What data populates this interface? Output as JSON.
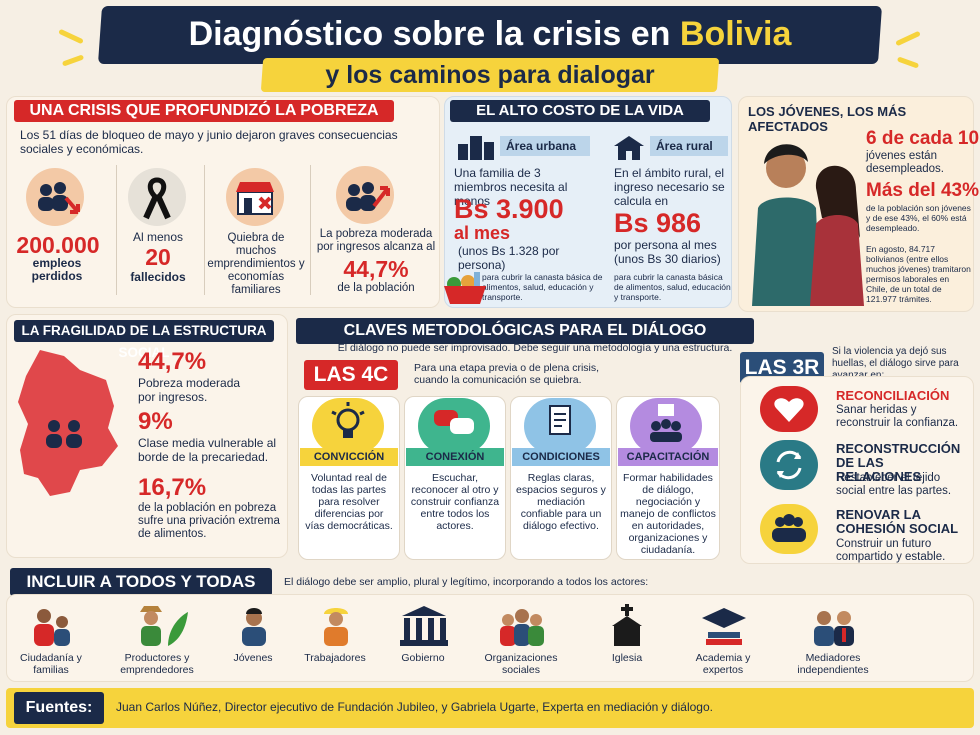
{
  "header": {
    "title_main": "Diagnóstico sobre la crisis en",
    "title_country": "Bolivia",
    "subtitle": "y los caminos para dialogar"
  },
  "crisis": {
    "title": "UNA CRISIS QUE PROFUNDIZÓ LA POBREZA",
    "intro": "Los 51 días de bloqueo de mayo y junio dejaron graves consecuencias sociales y económicas.",
    "stats": [
      {
        "value": "200.000",
        "label": "empleos perdidos"
      },
      {
        "prefix": "Al menos",
        "value": "20",
        "label": "fallecidos"
      },
      {
        "text": "Quiebra de muchos emprendimientos y economías familiares"
      },
      {
        "prefix": "La pobreza moderada por ingresos alcanza al",
        "value": "44,7%",
        "label": "de la población"
      }
    ]
  },
  "costo": {
    "title": "EL ALTO COSTO DE LA VIDA",
    "urbana": {
      "tag": "Área urbana",
      "text": "Una familia de 3 miembros necesita al menos",
      "amount": "Bs 3.900",
      "period": "al mes",
      "note": "(unos Bs 1.328 por persona)",
      "footnote": "para cubrir la canasta básica de alimentos, salud, educación y transporte."
    },
    "rural": {
      "tag": "Área rural",
      "text": "En el ámbito rural, el ingreso necesario se calcula en",
      "amount": "Bs 986",
      "period": "por persona al mes",
      "note": "(unos Bs 30 diarios)",
      "footnote": "para cubrir la canasta básica de alimentos, salud, educación y transporte."
    }
  },
  "jovenes": {
    "title": "LOS JÓVENES, LOS MÁS AFECTADOS",
    "stat1_value": "6 de cada 10",
    "stat1_text": "jóvenes están desempleados.",
    "stat2_value": "Más del 43%",
    "stat2_text": "de la población son jóvenes y de ese 43%, el 60% está desempleado.",
    "stat3_text": "En agosto, 84.717 bolivianos (entre ellos muchos jóvenes) tramitaron permisos laborales en Chile, de un total de 121.977 trámites."
  },
  "fragilidad": {
    "title": "LA FRAGILIDAD DE LA ESTRUCTURA SOCIAL",
    "items": [
      {
        "value": "44,7%",
        "text": "Pobreza moderada por ingresos."
      },
      {
        "value": "9%",
        "text": "Clase media vulnerable al borde de la precariedad."
      },
      {
        "value": "16,7%",
        "text": "de la población en pobreza sufre una privación extrema de alimentos."
      }
    ]
  },
  "claves": {
    "title": "CLAVES METODOLÓGICAS PARA EL DIÁLOGO",
    "subtitle": "El diálogo no puede ser improvisado. Debe seguir una metodología y una estructura.",
    "c4_label": "LAS 4C",
    "c4_intro": "Para una etapa previa o de plena crisis, cuando la comunicación se quiebra.",
    "cards": [
      {
        "name": "CONVICCIÓN",
        "text": "Voluntad real de todas las partes para resolver diferencias por vías democráticas."
      },
      {
        "name": "CONEXIÓN",
        "text": "Escuchar, reconocer al otro y construir confianza entre todos los actores."
      },
      {
        "name": "CONDICIONES",
        "text": "Reglas claras, espacios seguros y mediación confiable para un diálogo efectivo."
      },
      {
        "name": "CAPACITACIÓN",
        "text": "Formar habilidades de diálogo, negociación y manejo de conflictos en autoridades, organizaciones y ciudadanía."
      }
    ]
  },
  "r3": {
    "label": "LAS 3R",
    "intro": "Si la violencia ya dejó sus huellas, el diálogo sirve para avanzar en:",
    "items": [
      {
        "name": "RECONCILIACIÓN",
        "text": "Sanar heridas y reconstruir la confianza."
      },
      {
        "name": "RECONSTRUCCIÓN DE LAS RELACIONES",
        "text": "Restablecer el tejido social entre las partes."
      },
      {
        "name": "RENOVAR LA COHESIÓN SOCIAL",
        "text": "Construir un futuro compartido y estable."
      }
    ]
  },
  "incluir": {
    "title": "INCLUIR A TODOS Y TODAS",
    "subtitle": "El diálogo debe ser amplio, plural y legítimo, incorporando a todos los actores:",
    "actors": [
      "Ciudadanía y familias",
      "Productores y emprendedores",
      "Jóvenes",
      "Trabajadores",
      "Gobierno",
      "Organizaciones sociales",
      "Iglesia",
      "Academia y expertos",
      "Mediadores independientes"
    ]
  },
  "fuentes": {
    "label": "Fuentes:",
    "text": "Juan Carlos Núñez, Director ejecutivo de Fundación Jubileo, y Gabriela Ugarte, Experta en mediación y diálogo."
  },
  "colors": {
    "navy": "#1b2a48",
    "red": "#d62828",
    "yellow": "#f6d33c",
    "cream": "#f6efe4"
  }
}
